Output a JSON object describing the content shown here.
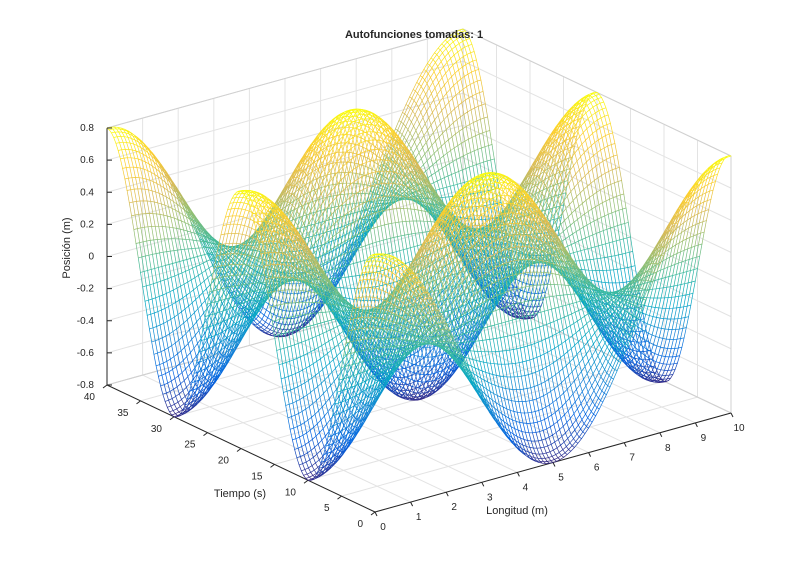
{
  "chart_data": {
    "type": "surface",
    "title": "Autofunciones tomadas: 1",
    "xlabel": "Longitud (m)",
    "ylabel": "Tiempo (s)",
    "zlabel": "Posición (m)",
    "xlim": [
      0,
      10
    ],
    "ylim": [
      0,
      40
    ],
    "zlim": [
      -0.8,
      0.8
    ],
    "x_ticks": [
      "0",
      "1",
      "2",
      "3",
      "4",
      "5",
      "6",
      "7",
      "8",
      "9",
      "10"
    ],
    "y_ticks": [
      "0",
      "5",
      "10",
      "15",
      "20",
      "25",
      "30",
      "35",
      "40"
    ],
    "z_ticks": [
      "-0.8",
      "-0.6",
      "-0.4",
      "-0.2",
      "0",
      "0.2",
      "0.4",
      "0.6",
      "0.8"
    ],
    "grid": true,
    "colormap": "parula",
    "colormap_stops": [
      "#352a87",
      "#0363e1",
      "#1485d4",
      "#06a7c6",
      "#38b99e",
      "#92bf73",
      "#d9ba56",
      "#fcce2e",
      "#f9fb0e"
    ],
    "surface": {
      "function": "z = 0.8 · cos(π · x / 5) · cos(π · y / 10)",
      "amplitude": 0.8,
      "x_period": 10,
      "y_period": 20,
      "x_samples": 101,
      "y_samples": 121
    }
  }
}
